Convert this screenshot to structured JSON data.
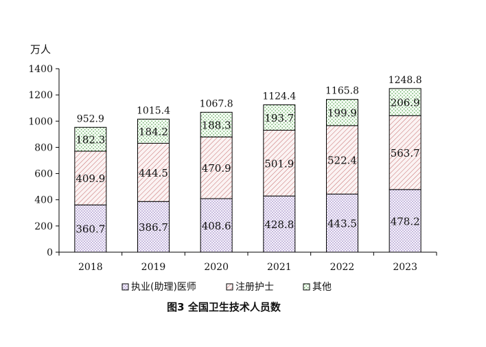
{
  "chart_data": {
    "type": "bar",
    "stacked": true,
    "title": "图3 全国卫生技术人员数",
    "ylabel": "万人",
    "xlabel": "",
    "ylim": [
      0,
      1400
    ],
    "yticks": [
      0,
      200,
      400,
      600,
      800,
      1000,
      1200,
      1400
    ],
    "ytick_labels": [
      "0",
      "200",
      "400",
      "600",
      "800",
      "1000",
      "1200",
      "1400"
    ],
    "categories": [
      "2018",
      "2019",
      "2020",
      "2021",
      "2022",
      "2023"
    ],
    "series": [
      {
        "name": "执业(助理)医师",
        "values": [
          360.7,
          386.7,
          408.6,
          428.8,
          443.5,
          478.2
        ],
        "value_labels": [
          "360.7",
          "386.7",
          "408.6",
          "428.8",
          "443.5",
          "478.2"
        ],
        "pattern": "dots",
        "color": "#c9b6e4"
      },
      {
        "name": "注册护士",
        "values": [
          409.9,
          444.5,
          470.9,
          501.9,
          522.4,
          563.7
        ],
        "value_labels": [
          "409.9",
          "444.5",
          "470.9",
          "501.9",
          "522.4",
          "563.7"
        ],
        "pattern": "diagonal",
        "color": "#e3a6a6"
      },
      {
        "name": "其他",
        "values": [
          182.3,
          184.2,
          188.3,
          193.7,
          199.9,
          206.9
        ],
        "value_labels": [
          "182.3",
          "184.2",
          "188.3",
          "193.7",
          "199.9",
          "206.9"
        ],
        "pattern": "dots-green",
        "color": "#9ccf96"
      }
    ],
    "totals": [
      952.9,
      1015.4,
      1067.8,
      1124.4,
      1165.8,
      1248.8
    ],
    "total_labels": [
      "952.9",
      "1015.4",
      "1067.8",
      "1124.4",
      "1165.8",
      "1248.8"
    ],
    "grid": false,
    "legend": "bottom"
  }
}
